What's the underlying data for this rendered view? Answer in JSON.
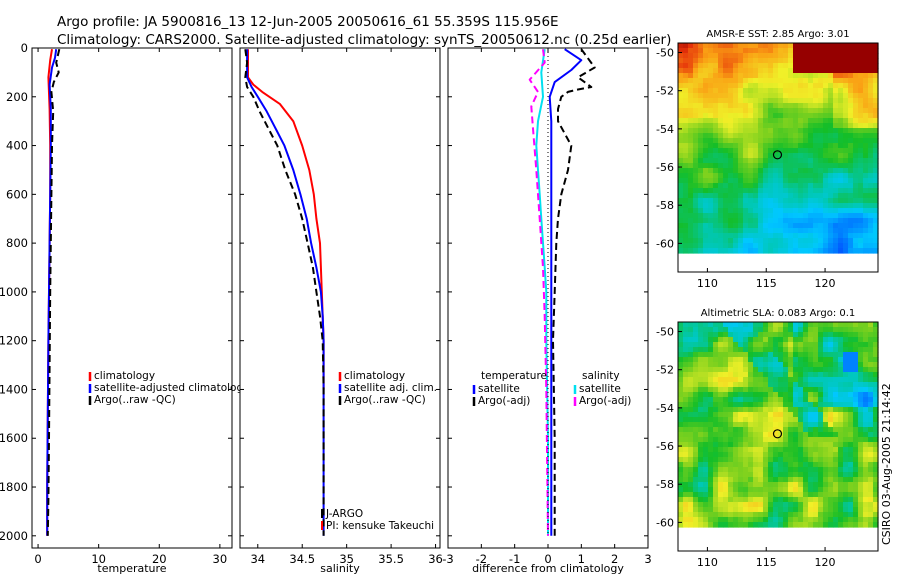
{
  "header": {
    "line1": "Argo profile: JA 5900816_13 12-Jun-2005 20050616_61 55.359S 115.956E",
    "line2": "Climatology: CARS2000. Satellite-adjusted climatology: synTS_20050612.nc (0.25d earlier)"
  },
  "side_stamp": "CSIRO 03-Aug-2005 21:14:42",
  "colors": {
    "climatology": "#ff0000",
    "satellite": "#0000ff",
    "argo": "#000000",
    "sal_satellite": "#00e0f0",
    "sal_argo": "#ff00ff"
  },
  "chart_data": [
    {
      "type": "line",
      "panel": "temperature",
      "xlabel": "temperature",
      "xlim": [
        -1,
        32
      ],
      "xticks": [
        "0",
        "10",
        "20",
        "30"
      ],
      "xtick_values": [
        0,
        10,
        20,
        30
      ],
      "ylim": [
        0,
        2050
      ],
      "yticks": [
        "0",
        "200",
        "400",
        "600",
        "800",
        "1000",
        "1200",
        "1400",
        "1600",
        "1800",
        "2000"
      ],
      "ytick_values": [
        0,
        200,
        400,
        600,
        800,
        1000,
        1200,
        1400,
        1600,
        1800,
        2000
      ],
      "legend": [
        "climatology",
        "satellite-adjusted climatology",
        "Argo(..raw -QC)"
      ],
      "series": [
        {
          "name": "climatology",
          "color": "#ff0000",
          "dash": false,
          "x": [
            2.3,
            2.0,
            1.7,
            1.9,
            2.0,
            2.0,
            1.9,
            1.8,
            1.7,
            1.6,
            1.5,
            1.5
          ],
          "y": [
            5,
            50,
            120,
            250,
            400,
            600,
            800,
            1000,
            1200,
            1500,
            1800,
            2000
          ]
        },
        {
          "name": "satellite-adjusted climatology",
          "color": "#0000ff",
          "dash": false,
          "x": [
            3.0,
            2.8,
            2.3,
            1.9,
            2.1,
            2.1,
            2.0,
            1.9,
            1.8,
            1.7,
            1.6,
            1.5,
            1.5
          ],
          "y": [
            5,
            40,
            80,
            150,
            250,
            400,
            600,
            800,
            1000,
            1200,
            1500,
            1800,
            2000
          ]
        },
        {
          "name": "Argo(..raw -QC)",
          "color": "#000000",
          "dash": true,
          "x": [
            3.5,
            3.0,
            3.4,
            2.6,
            2.2,
            2.5,
            2.3,
            2.2,
            2.1,
            2.0,
            1.9,
            1.8,
            1.7,
            1.6
          ],
          "y": [
            5,
            60,
            100,
            140,
            180,
            260,
            400,
            600,
            800,
            1000,
            1300,
            1600,
            1850,
            2000
          ]
        }
      ]
    },
    {
      "type": "line",
      "panel": "salinity",
      "xlabel": "salinity",
      "xlim": [
        33.8,
        36.05
      ],
      "xticks": [
        "34",
        "34.5",
        "35",
        "35.5",
        "36"
      ],
      "xtick_values": [
        34,
        34.5,
        35,
        35.5,
        36
      ],
      "ylim": [
        0,
        2050
      ],
      "legend": [
        "climatology",
        "satellite adj. clim.",
        "Argo(..raw -QC)"
      ],
      "annotations": [
        "J-ARGO",
        "PI: kensuke Takeuchi"
      ],
      "series": [
        {
          "name": "climatology",
          "color": "#ff0000",
          "dash": false,
          "x": [
            33.89,
            33.89,
            33.95,
            34.05,
            34.25,
            34.4,
            34.5,
            34.58,
            34.63,
            34.66,
            34.7,
            34.72,
            34.74,
            34.74,
            34.74
          ],
          "y": [
            5,
            120,
            150,
            180,
            230,
            300,
            400,
            500,
            600,
            700,
            800,
            1000,
            1200,
            1300,
            1400
          ]
        },
        {
          "name": "satellite adj. clim.",
          "color": "#0000ff",
          "dash": false,
          "x": [
            33.88,
            33.88,
            33.93,
            34.0,
            34.1,
            34.2,
            34.3,
            34.4,
            34.48,
            34.55,
            34.6,
            34.66,
            34.71,
            34.73,
            34.74,
            34.74
          ],
          "y": [
            5,
            120,
            160,
            200,
            260,
            330,
            400,
            500,
            600,
            700,
            800,
            900,
            1000,
            1100,
            1200,
            2000
          ]
        },
        {
          "name": "Argo(..raw -QC)",
          "color": "#000000",
          "dash": true,
          "x": [
            33.86,
            33.88,
            33.86,
            33.88,
            33.95,
            34.02,
            34.12,
            34.22,
            34.31,
            34.42,
            34.5,
            34.56,
            34.62,
            34.66,
            34.7,
            34.73,
            34.74,
            34.74
          ],
          "y": [
            5,
            60,
            120,
            160,
            200,
            260,
            330,
            400,
            500,
            600,
            700,
            800,
            900,
            1000,
            1100,
            1200,
            1400,
            2000
          ]
        }
      ]
    },
    {
      "type": "line",
      "panel": "difference",
      "xlabel": "difference from climatology",
      "xlim": [
        -3,
        3
      ],
      "xticks": [
        "-3",
        "-2",
        "-1",
        "0",
        "1",
        "2",
        "3"
      ],
      "xtick_values": [
        -3,
        -2,
        -1,
        0,
        1,
        2,
        3
      ],
      "ylim": [
        0,
        2050
      ],
      "legend_left": [
        "temperature",
        "satellite",
        "Argo(-adj)"
      ],
      "legend_right": [
        "salinity",
        "satellite",
        "Argo(-adj)"
      ],
      "series": [
        {
          "name": "temperature satellite",
          "color": "#0000ff",
          "dash": false,
          "x": [
            0.5,
            1.0,
            0.7,
            0.2,
            0.05,
            0.1,
            0.1,
            0.1,
            0.1,
            0.1,
            0.1,
            0.1,
            0.1,
            0.1,
            0.1,
            0.1
          ],
          "y": [
            5,
            50,
            90,
            140,
            200,
            300,
            400,
            600,
            800,
            1000,
            1200,
            1400,
            1600,
            1800,
            1900,
            2000
          ]
        },
        {
          "name": "temperature Argo(-adj)",
          "color": "#000000",
          "dash": true,
          "x": [
            1.0,
            1.4,
            0.9,
            1.3,
            0.9,
            0.6,
            0.4,
            0.3,
            0.3,
            0.7,
            0.6,
            0.4,
            0.3,
            0.25,
            0.2,
            0.15,
            0.2,
            0.2
          ],
          "y": [
            5,
            80,
            120,
            160,
            170,
            180,
            200,
            250,
            300,
            400,
            500,
            600,
            700,
            800,
            1000,
            1200,
            1600,
            2000
          ]
        },
        {
          "name": "salinity satellite",
          "color": "#00e0f0",
          "dash": false,
          "x": [
            -0.1,
            -0.2,
            -0.15,
            -0.3,
            -0.35,
            -0.3,
            -0.25,
            -0.2,
            -0.15,
            -0.1,
            -0.05,
            -0.05,
            0.0,
            0.0
          ],
          "y": [
            5,
            100,
            200,
            300,
            400,
            500,
            600,
            700,
            800,
            900,
            1000,
            1200,
            1600,
            2000
          ]
        },
        {
          "name": "salinity Argo(-adj)",
          "color": "#ff00ff",
          "dash": true,
          "x": [
            -0.15,
            -0.1,
            -0.55,
            -0.3,
            -0.5,
            -0.45,
            -0.35,
            -0.25,
            -0.15,
            -0.1,
            -0.05,
            0.0
          ],
          "y": [
            5,
            60,
            130,
            180,
            240,
            330,
            500,
            700,
            900,
            1100,
            1400,
            2000
          ]
        },
        {
          "name": "zero",
          "color": "#000000",
          "dotted": true,
          "x": [
            0,
            0
          ],
          "y": [
            0,
            2000
          ]
        }
      ]
    },
    {
      "type": "heatmap",
      "panel": "sst_map",
      "title": "AMSR-E SST: 2.85 Argo: 3.01",
      "xlim": [
        107.5,
        124.5
      ],
      "ylim": [
        -61.5,
        -49.5
      ],
      "xticks": [
        "110",
        "115",
        "120"
      ],
      "xtick_values": [
        110,
        115,
        120
      ],
      "yticks": [
        "-50",
        "-52",
        "-54",
        "-56",
        "-58",
        "-60"
      ],
      "ytick_values": [
        -50,
        -52,
        -54,
        -56,
        -58,
        -60
      ],
      "data_ymin": -60.3,
      "marker": {
        "lon": 115.956,
        "lat": -55.359
      }
    },
    {
      "type": "heatmap",
      "panel": "sla_map",
      "title": "Altimetric SLA: 0.083 Argo: 0.1",
      "xlim": [
        107.5,
        124.5
      ],
      "ylim": [
        -61.5,
        -49.5
      ],
      "xticks": [
        "110",
        "115",
        "120"
      ],
      "xtick_values": [
        110,
        115,
        120
      ],
      "yticks": [
        "-50",
        "-52",
        "-54",
        "-56",
        "-58",
        "-60"
      ],
      "ytick_values": [
        -50,
        -52,
        -54,
        -56,
        -58,
        -60
      ],
      "data_ymin": -60.0,
      "marker": {
        "lon": 115.956,
        "lat": -55.359
      }
    }
  ]
}
